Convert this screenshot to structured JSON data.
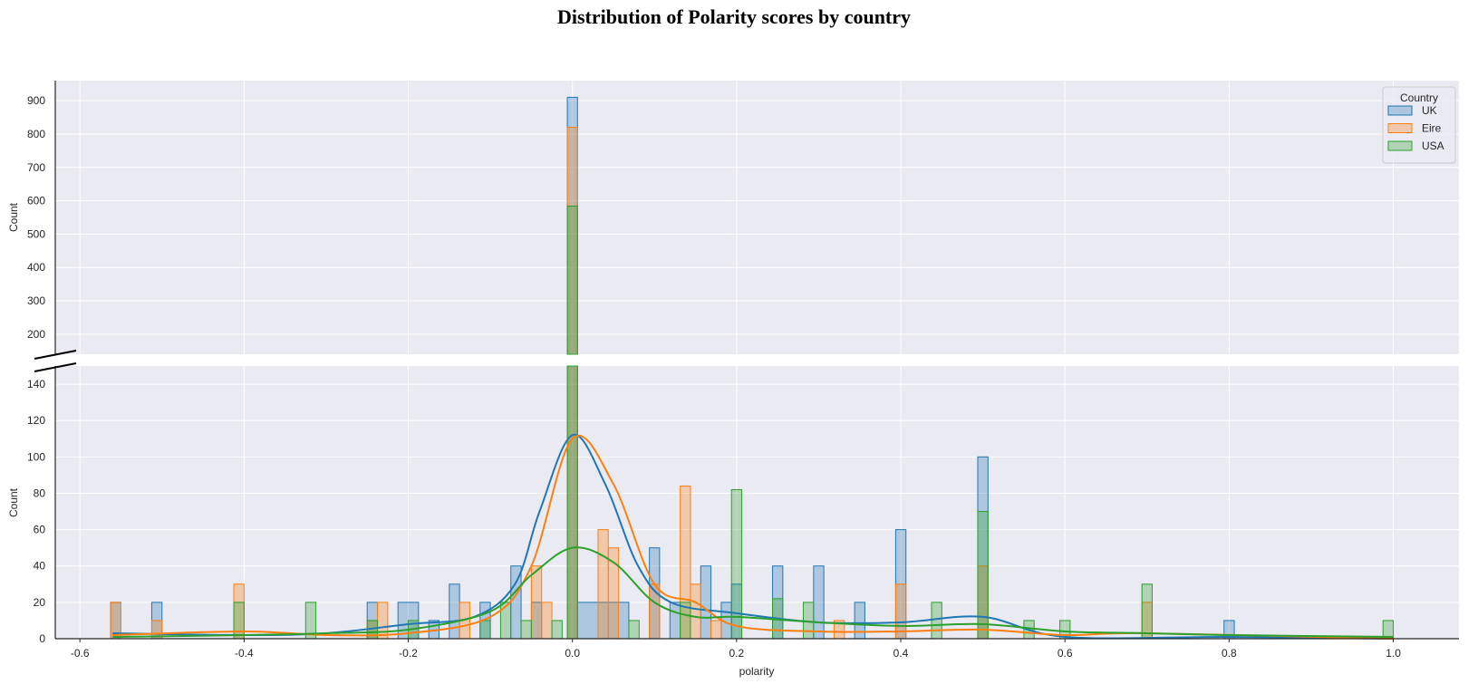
{
  "chart_data": {
    "type": "bar",
    "title": "Distribution of Polarity scores by country",
    "xlabel": "polarity",
    "ylabel_top": "Count",
    "ylabel_bottom": "Count",
    "xlim": [
      -0.63,
      1.08
    ],
    "x_ticks": [
      -0.6,
      -0.4,
      -0.2,
      0.0,
      0.2,
      0.4,
      0.6,
      0.8,
      1.0
    ],
    "ylim_top": [
      140,
      960
    ],
    "y_ticks_top": [
      200,
      300,
      400,
      500,
      600,
      700,
      800,
      900
    ],
    "ylim_bottom": [
      0,
      150
    ],
    "y_ticks_bottom": [
      0,
      20,
      40,
      60,
      80,
      100,
      120,
      140
    ],
    "broken_axis": true,
    "grid": true,
    "legend": {
      "title": "Country",
      "position": "top-right"
    },
    "series": [
      {
        "name": "UK",
        "color": "#1f77b4",
        "bins": [
          [
            -0.5625,
            -0.55,
            20
          ],
          [
            -0.5125,
            -0.5,
            20
          ],
          [
            -0.25,
            -0.2375,
            20
          ],
          [
            -0.2125,
            -0.1875,
            20
          ],
          [
            -0.175,
            -0.1625,
            10
          ],
          [
            -0.15,
            -0.1375,
            30
          ],
          [
            -0.1125,
            -0.1,
            20
          ],
          [
            -0.075,
            -0.0625,
            40
          ],
          [
            -0.05,
            -0.0375,
            20
          ],
          [
            -0.0062,
            0.0062,
            910
          ],
          [
            0.0062,
            0.0687,
            20
          ],
          [
            0.0938,
            0.1062,
            50
          ],
          [
            0.1188,
            0.1313,
            20
          ],
          [
            0.1563,
            0.1688,
            40
          ],
          [
            0.1813,
            0.1938,
            20
          ],
          [
            0.1938,
            0.2063,
            30
          ],
          [
            0.2438,
            0.2563,
            40
          ],
          [
            0.2938,
            0.3063,
            40
          ],
          [
            0.3438,
            0.3563,
            20
          ],
          [
            0.3938,
            0.4063,
            60
          ],
          [
            0.4938,
            0.5063,
            100
          ],
          [
            0.7938,
            0.8063,
            10
          ]
        ],
        "kde": [
          [
            -0.56,
            3
          ],
          [
            -0.4,
            2
          ],
          [
            -0.3,
            3
          ],
          [
            -0.2,
            8
          ],
          [
            -0.12,
            12
          ],
          [
            -0.07,
            30
          ],
          [
            -0.04,
            70
          ],
          [
            0.0,
            112
          ],
          [
            0.04,
            85
          ],
          [
            0.08,
            40
          ],
          [
            0.12,
            20
          ],
          [
            0.2,
            14
          ],
          [
            0.3,
            9
          ],
          [
            0.4,
            9
          ],
          [
            0.5,
            12
          ],
          [
            0.6,
            1
          ],
          [
            0.8,
            1
          ],
          [
            1.0,
            0
          ]
        ]
      },
      {
        "name": "Eire",
        "color": "#ff7f0e",
        "bins": [
          [
            -0.5625,
            -0.55,
            20
          ],
          [
            -0.5125,
            -0.5,
            10
          ],
          [
            -0.4125,
            -0.4,
            30
          ],
          [
            -0.25,
            -0.2375,
            10
          ],
          [
            -0.2375,
            -0.225,
            20
          ],
          [
            -0.1375,
            -0.125,
            20
          ],
          [
            -0.05,
            -0.0375,
            40
          ],
          [
            -0.0375,
            -0.025,
            20
          ],
          [
            -0.0062,
            0.0062,
            820
          ],
          [
            0.0312,
            0.0437,
            60
          ],
          [
            0.0437,
            0.0562,
            50
          ],
          [
            0.0938,
            0.1062,
            30
          ],
          [
            0.1313,
            0.1438,
            84
          ],
          [
            0.1438,
            0.1563,
            30
          ],
          [
            0.1688,
            0.1813,
            10
          ],
          [
            0.3188,
            0.3313,
            10
          ],
          [
            0.3938,
            0.4063,
            30
          ],
          [
            0.4938,
            0.5063,
            40
          ],
          [
            0.6938,
            0.7063,
            20
          ]
        ],
        "kde": [
          [
            -0.56,
            2
          ],
          [
            -0.4,
            4
          ],
          [
            -0.3,
            2
          ],
          [
            -0.2,
            3
          ],
          [
            -0.1,
            12
          ],
          [
            -0.05,
            40
          ],
          [
            0.0,
            110
          ],
          [
            0.05,
            85
          ],
          [
            0.1,
            30
          ],
          [
            0.15,
            20
          ],
          [
            0.2,
            7
          ],
          [
            0.3,
            4
          ],
          [
            0.4,
            4
          ],
          [
            0.5,
            5
          ],
          [
            0.6,
            2
          ],
          [
            0.7,
            3
          ],
          [
            1.0,
            0
          ]
        ]
      },
      {
        "name": "USA",
        "color": "#2ca02c",
        "bins": [
          [
            -0.4125,
            -0.4,
            20
          ],
          [
            -0.325,
            -0.3125,
            20
          ],
          [
            -0.25,
            -0.2375,
            10
          ],
          [
            -0.2,
            -0.1875,
            10
          ],
          [
            -0.1125,
            -0.1,
            10
          ],
          [
            -0.0875,
            -0.075,
            20
          ],
          [
            -0.0625,
            -0.05,
            10
          ],
          [
            -0.025,
            -0.0125,
            10
          ],
          [
            -0.0062,
            0.0062,
            584
          ],
          [
            0.0688,
            0.0813,
            10
          ],
          [
            0.1313,
            0.1438,
            20
          ],
          [
            0.1938,
            0.2063,
            82
          ],
          [
            0.2438,
            0.2563,
            22
          ],
          [
            0.2813,
            0.2938,
            20
          ],
          [
            0.4375,
            0.45,
            20
          ],
          [
            0.4938,
            0.5063,
            70
          ],
          [
            0.55,
            0.5625,
            10
          ],
          [
            0.5938,
            0.6063,
            10
          ],
          [
            0.6938,
            0.7063,
            30
          ],
          [
            0.9875,
            1.0,
            10
          ]
        ],
        "kde": [
          [
            -0.56,
            1
          ],
          [
            -0.4,
            2
          ],
          [
            -0.3,
            3
          ],
          [
            -0.2,
            5
          ],
          [
            -0.1,
            15
          ],
          [
            -0.05,
            35
          ],
          [
            0.0,
            50
          ],
          [
            0.05,
            42
          ],
          [
            0.1,
            20
          ],
          [
            0.15,
            12
          ],
          [
            0.2,
            12
          ],
          [
            0.3,
            9
          ],
          [
            0.4,
            7
          ],
          [
            0.5,
            8
          ],
          [
            0.6,
            4
          ],
          [
            0.7,
            3
          ],
          [
            0.8,
            2
          ],
          [
            1.0,
            1
          ]
        ]
      }
    ]
  }
}
